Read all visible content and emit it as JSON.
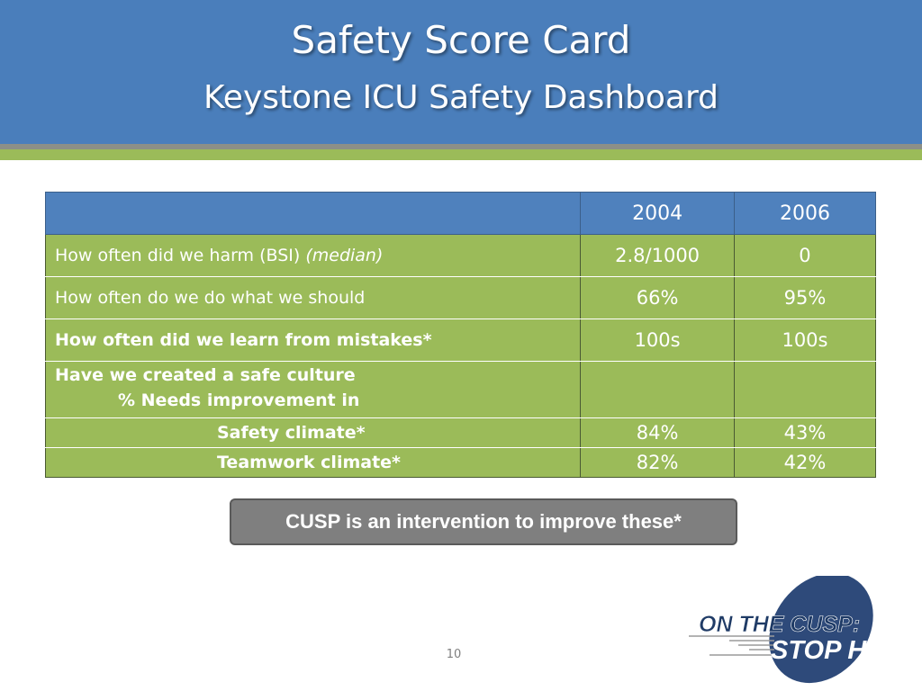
{
  "slide": {
    "title_line1": "Safety Score Card",
    "title_line2": "Keystone ICU Safety Dashboard",
    "page_number": "10"
  },
  "table": {
    "header": [
      "",
      "2004",
      "2006"
    ],
    "rows": [
      {
        "label": "How often did we harm (BSI) ",
        "label_italic": "(median)",
        "v2004": "2.8/1000",
        "v2006": "0"
      },
      {
        "label": "How often do we do what we should",
        "v2004": "66%",
        "v2006": "95%"
      },
      {
        "label": "How often did we learn from mistakes*",
        "v2004": "100s",
        "v2006": "100s"
      },
      {
        "label": "Have we created a safe culture",
        "sub_label": "% Needs improvement in",
        "v2004": "",
        "v2006": ""
      },
      {
        "label": "Safety climate*",
        "v2004": "84%",
        "v2006": "43%"
      },
      {
        "label": "Teamwork climate*",
        "v2004": "82%",
        "v2006": "42%"
      }
    ]
  },
  "callout": {
    "text": "CUSP is an intervention to improve these*"
  },
  "logo": {
    "line1": "ON THE CUSP:",
    "line2": "STOP HAI"
  },
  "colors": {
    "header_blue": "#4a7ebb",
    "table_header_blue": "#4f81bd",
    "row_green": "#9bbb59",
    "callout_gray": "#7f7f7f",
    "logo_navy": "#2e4a7a"
  }
}
